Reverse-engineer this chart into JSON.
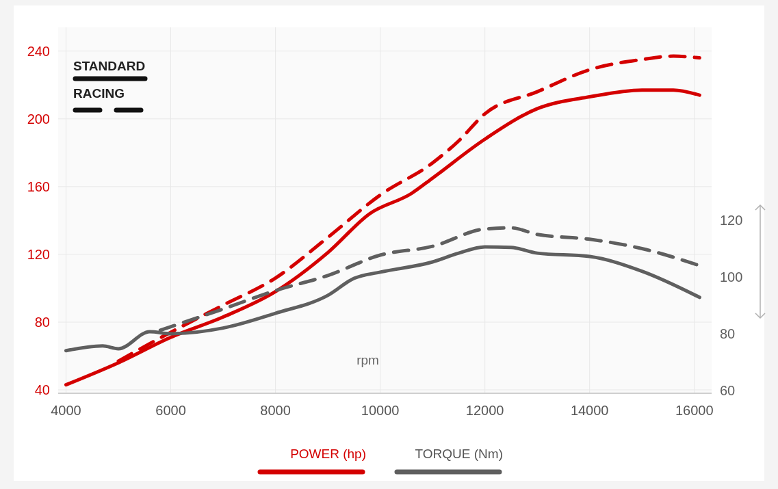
{
  "chart_data": {
    "type": "line",
    "xlabel": "rpm",
    "xlim": [
      3850,
      16330
    ],
    "xticks": [
      4000,
      6000,
      8000,
      10000,
      12000,
      14000,
      16000
    ],
    "ylim": [
      38,
      254
    ],
    "yticks": [
      40,
      80,
      120,
      160,
      200,
      240
    ],
    "y2lim": [
      59,
      188
    ],
    "y2ticks": [
      60,
      80,
      100,
      120
    ],
    "grid": true,
    "legend": "bottom",
    "annotations": [
      "STANDARD",
      "RACING"
    ],
    "series": [
      {
        "name": "POWER (hp)",
        "color": "#d40000",
        "line_style": "solid",
        "x": [
          4000,
          5000,
          6000,
          7000,
          8000,
          9000,
          9800,
          10600,
          11000,
          12000,
          13000,
          14000,
          15000,
          15600,
          16100
        ],
        "values": [
          43,
          56,
          71,
          83,
          98,
          121,
          144,
          156,
          165,
          188,
          206,
          213,
          217,
          217,
          214
        ]
      },
      {
        "color": "#d40000",
        "line_style": "dashed",
        "x": [
          5000,
          6000,
          7000,
          8000,
          9000,
          10000,
          11000,
          11500,
          12000,
          13000,
          14000,
          15000,
          15600,
          16100
        ],
        "values": [
          57,
          74,
          90,
          106,
          130,
          155,
          174,
          187,
          203,
          216,
          229,
          235,
          237,
          236
        ]
      },
      {
        "name": "TORQUE (Nm)",
        "color": "#5f5f5f",
        "axis": "y2",
        "line_style": "solid",
        "x": [
          4000,
          4700,
          5000,
          5600,
          6000,
          7000,
          8000,
          9000,
          9500,
          10000,
          11000,
          11500,
          12000,
          12500,
          13000,
          14000,
          15000,
          16100
        ],
        "values": [
          74,
          75.7,
          74.7,
          80.7,
          80,
          82,
          87.2,
          93.5,
          99.5,
          101.7,
          105.3,
          108.4,
          110.6,
          110.4,
          108.4,
          107.2,
          102,
          92.8
        ]
      },
      {
        "color": "#5f5f5f",
        "axis": "y2",
        "line_style": "dashed",
        "x": [
          5800,
          7000,
          8000,
          9000,
          10000,
          11000,
          12000,
          12500,
          13000,
          14000,
          15000,
          16100
        ],
        "values": [
          81.2,
          88.7,
          95.2,
          100.5,
          107.7,
          110.8,
          116.9,
          117.3,
          115,
          113.3,
          110,
          104
        ]
      }
    ]
  }
}
